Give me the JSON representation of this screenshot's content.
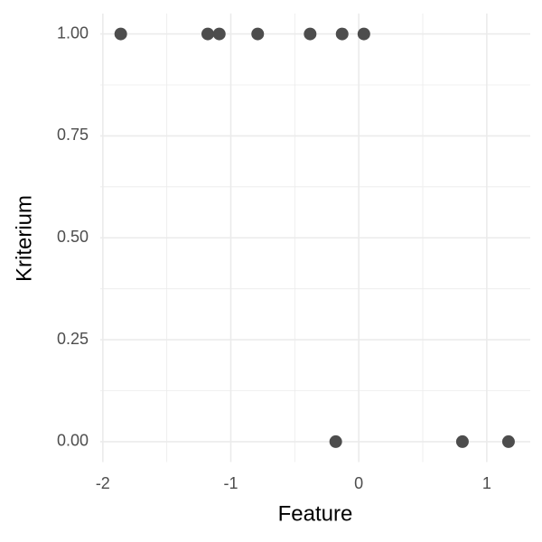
{
  "chart_data": {
    "type": "scatter",
    "x_label": "Feature",
    "y_label": "Kriterium",
    "x": [
      -1.86,
      -1.18,
      -1.09,
      -0.79,
      -0.38,
      -0.13,
      0.04,
      -0.18,
      0.81,
      1.17
    ],
    "values": [
      1,
      1,
      1,
      1,
      1,
      1,
      1,
      0,
      0,
      0
    ],
    "color": "#4d4d4d",
    "xlim": [
      -2.02,
      1.34
    ],
    "ylim": [
      -0.05,
      1.05
    ],
    "xticks": [
      -2,
      -1,
      0,
      1
    ],
    "yticks": [
      {
        "value": 0,
        "label": "0.00"
      },
      {
        "value": 0.25,
        "label": "0.25"
      },
      {
        "value": 0.5,
        "label": "0.50"
      },
      {
        "value": 0.75,
        "label": "0.75"
      },
      {
        "value": 1,
        "label": "1.00"
      }
    ],
    "grid": true
  }
}
